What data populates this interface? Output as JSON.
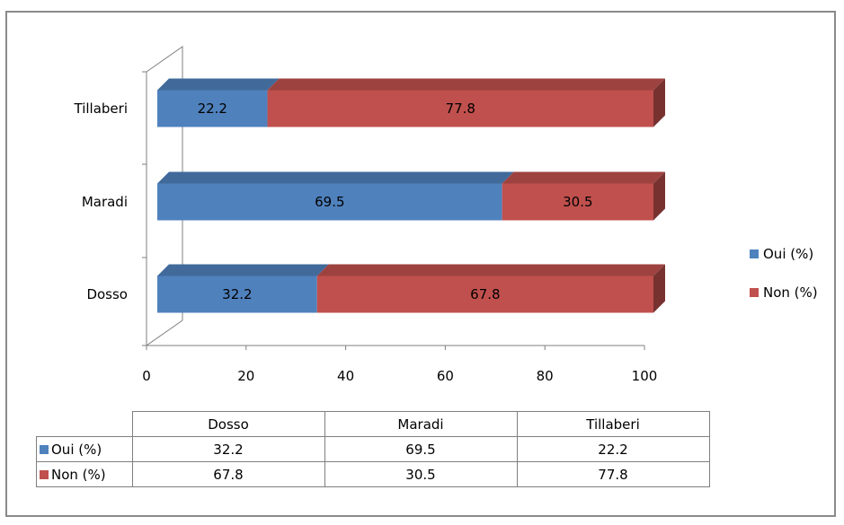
{
  "chart_data": {
    "type": "bar",
    "orientation": "horizontal",
    "stacked": true,
    "style": "3d",
    "categories": [
      "Dosso",
      "Maradi",
      "Tillaberi"
    ],
    "series": [
      {
        "name": "Oui (%)",
        "values": [
          32.2,
          69.5,
          22.2
        ],
        "value_labels": [
          "32.2",
          "69.5",
          "22.2"
        ],
        "color": "#4f81bd"
      },
      {
        "name": "Non (%)",
        "values": [
          67.8,
          30.5,
          77.8
        ],
        "value_labels": [
          "67.8",
          "30.5",
          "77.8"
        ],
        "color": "#c0504d"
      }
    ],
    "xlim": [
      0,
      100
    ],
    "x_ticks": [
      "0",
      "20",
      "40",
      "60",
      "80",
      "100"
    ],
    "grid": false,
    "legend_position": "right",
    "data_table": true
  }
}
